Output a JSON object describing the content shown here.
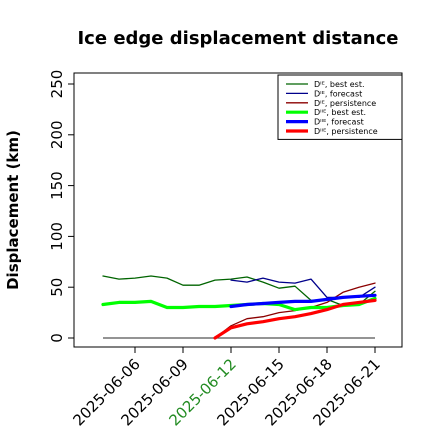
{
  "chart_data": {
    "type": "line",
    "title": "Ice edge displacement distance",
    "ylabel": "Displacement (km)",
    "xlabel": "",
    "ylim": [
      0,
      260
    ],
    "yticks": [
      0,
      50,
      100,
      150,
      200,
      250
    ],
    "xlim": [
      "2025-06-03",
      "2025-06-22"
    ],
    "xticks": [
      {
        "label": "2025-06-06",
        "date": "2025-06-06",
        "color": "#000000"
      },
      {
        "label": "2025-06-09",
        "date": "2025-06-09",
        "color": "#000000"
      },
      {
        "label": "2025-06-12",
        "date": "2025-06-12",
        "color": "#228B22"
      },
      {
        "label": "2025-06-15",
        "date": "2025-06-15",
        "color": "#000000"
      },
      {
        "label": "2025-06-18",
        "date": "2025-06-18",
        "color": "#000000"
      },
      {
        "label": "2025-06-21",
        "date": "2025-06-21",
        "color": "#000000"
      }
    ],
    "legend_position": "top-right",
    "series": [
      {
        "name": "Dᴵᴱ, best est.",
        "color": "#006400",
        "width": 1.3,
        "x": [
          "2025-06-04",
          "2025-06-05",
          "2025-06-06",
          "2025-06-07",
          "2025-06-08",
          "2025-06-09",
          "2025-06-10",
          "2025-06-11",
          "2025-06-12",
          "2025-06-13",
          "2025-06-14",
          "2025-06-15",
          "2025-06-16",
          "2025-06-17",
          "2025-06-18",
          "2025-06-19",
          "2025-06-20",
          "2025-06-21"
        ],
        "y": [
          61,
          58,
          59,
          61,
          59,
          52,
          52,
          57,
          58,
          60,
          55,
          49,
          51,
          37,
          38,
          32,
          33,
          46
        ]
      },
      {
        "name": "Dᴵᴱ, forecast",
        "color": "#00008B",
        "width": 1.3,
        "x": [
          "2025-06-12",
          "2025-06-13",
          "2025-06-14",
          "2025-06-15",
          "2025-06-16",
          "2025-06-17",
          "2025-06-18",
          "2025-06-19",
          "2025-06-20",
          "2025-06-21"
        ],
        "y": [
          57,
          55,
          59,
          55,
          54,
          58,
          40,
          40,
          40,
          50
        ]
      },
      {
        "name": "Dᴵᴱ, persistence",
        "color": "#8B0000",
        "width": 1.3,
        "x": [
          "2025-06-11",
          "2025-06-12",
          "2025-06-13",
          "2025-06-14",
          "2025-06-15",
          "2025-06-16",
          "2025-06-17",
          "2025-06-18",
          "2025-06-19",
          "2025-06-20",
          "2025-06-21"
        ],
        "y": [
          0,
          12,
          19,
          21,
          25,
          27,
          30,
          35,
          45,
          50,
          54
        ]
      },
      {
        "name": "Dᴵᴵᴱ, best est.",
        "color": "#00FF00",
        "width": 3.2,
        "x": [
          "2025-06-04",
          "2025-06-05",
          "2025-06-06",
          "2025-06-07",
          "2025-06-08",
          "2025-06-09",
          "2025-06-10",
          "2025-06-11",
          "2025-06-12",
          "2025-06-13",
          "2025-06-14",
          "2025-06-15",
          "2025-06-16",
          "2025-06-17",
          "2025-06-18",
          "2025-06-19",
          "2025-06-20",
          "2025-06-21"
        ],
        "y": [
          33,
          35,
          35,
          36,
          30,
          30,
          31,
          31,
          32,
          33,
          34,
          33,
          28,
          30,
          30,
          32,
          33,
          39
        ]
      },
      {
        "name": "Dᴵᴵᴱ, forecast",
        "color": "#0000FF",
        "width": 3.2,
        "x": [
          "2025-06-12",
          "2025-06-13",
          "2025-06-14",
          "2025-06-15",
          "2025-06-16",
          "2025-06-17",
          "2025-06-18",
          "2025-06-19",
          "2025-06-20",
          "2025-06-21"
        ],
        "y": [
          31,
          33,
          34,
          35,
          36,
          36,
          38,
          40,
          41,
          42
        ]
      },
      {
        "name": "Dᴵᴵᴱ, persistence",
        "color": "#FF0000",
        "width": 3.2,
        "x": [
          "2025-06-11",
          "2025-06-12",
          "2025-06-13",
          "2025-06-14",
          "2025-06-15",
          "2025-06-16",
          "2025-06-17",
          "2025-06-18",
          "2025-06-19",
          "2025-06-20",
          "2025-06-21"
        ],
        "y": [
          0,
          10,
          14,
          16,
          19,
          21,
          24,
          28,
          33,
          35,
          37
        ]
      }
    ],
    "reference_lines": [
      {
        "y": 0,
        "x": [
          "2025-06-04",
          "2025-06-21"
        ],
        "color": "#555555"
      }
    ]
  }
}
